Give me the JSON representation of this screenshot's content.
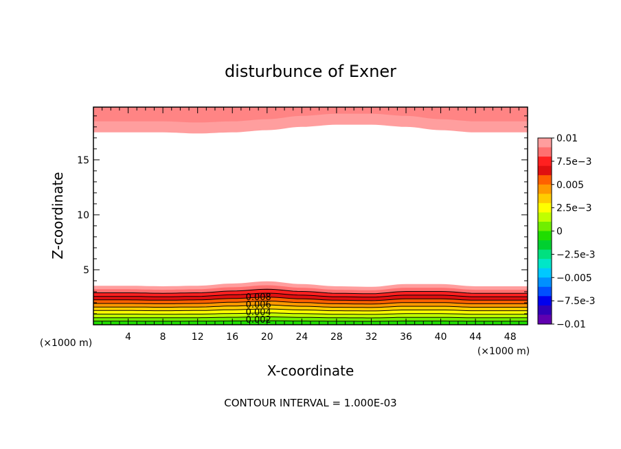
{
  "chart_data": {
    "type": "contour",
    "title": "disturbunce of Exner",
    "xlabel": "X-coordinate",
    "ylabel": "Z-coordinate",
    "x_unit": "(×1000 m)",
    "y_unit": "(×1000 m)",
    "xlim": [
      0,
      50
    ],
    "ylim": [
      0,
      19.8
    ],
    "x_ticks": [
      4,
      8,
      12,
      16,
      20,
      24,
      28,
      32,
      36,
      40,
      44,
      48
    ],
    "y_ticks": [
      5,
      10,
      15
    ],
    "footer": "CONTOUR INTERVAL = 1.000E-03",
    "contour_interval": 0.001,
    "colorbar": {
      "min": -0.01,
      "max": 0.01,
      "labels": [
        "0.01",
        "7.5e-3",
        "0.005",
        "2.5e-3",
        "0",
        "-2.5e-3",
        "-0.005",
        "-7.5e-3",
        "-0.01"
      ],
      "colors": [
        "#ff9e9e",
        "#ff7070",
        "#ff2020",
        "#e01010",
        "#ff6000",
        "#ff9900",
        "#ffcc00",
        "#ffff00",
        "#c0ff00",
        "#70ee00",
        "#20dd00",
        "#00d030",
        "#00e080",
        "#00e6c8",
        "#00c8ff",
        "#0090ff",
        "#0050ff",
        "#0000ee",
        "#3000b8",
        "#6000b0"
      ]
    },
    "bottom_layer": {
      "top_height": [
        3.55,
        3.55,
        3.5,
        3.55,
        3.75,
        3.95,
        3.7,
        3.5,
        3.45,
        3.7,
        3.7,
        3.5,
        3.5
      ],
      "x_at": [
        0,
        4,
        8,
        12,
        16,
        20,
        24,
        28,
        32,
        36,
        40,
        44,
        50
      ],
      "contour_labels": [
        "0.008",
        "0.006",
        "0.004",
        "0.002"
      ],
      "contour_label_x": 19
    },
    "top_layer": {
      "bottom_height": [
        17.5,
        17.5,
        17.5,
        17.4,
        17.5,
        17.7,
        18.0,
        18.2,
        18.2,
        18.0,
        17.7,
        17.5,
        17.5
      ],
      "x_at": [
        0,
        4,
        8,
        12,
        16,
        20,
        24,
        28,
        32,
        36,
        40,
        44,
        50
      ]
    }
  }
}
